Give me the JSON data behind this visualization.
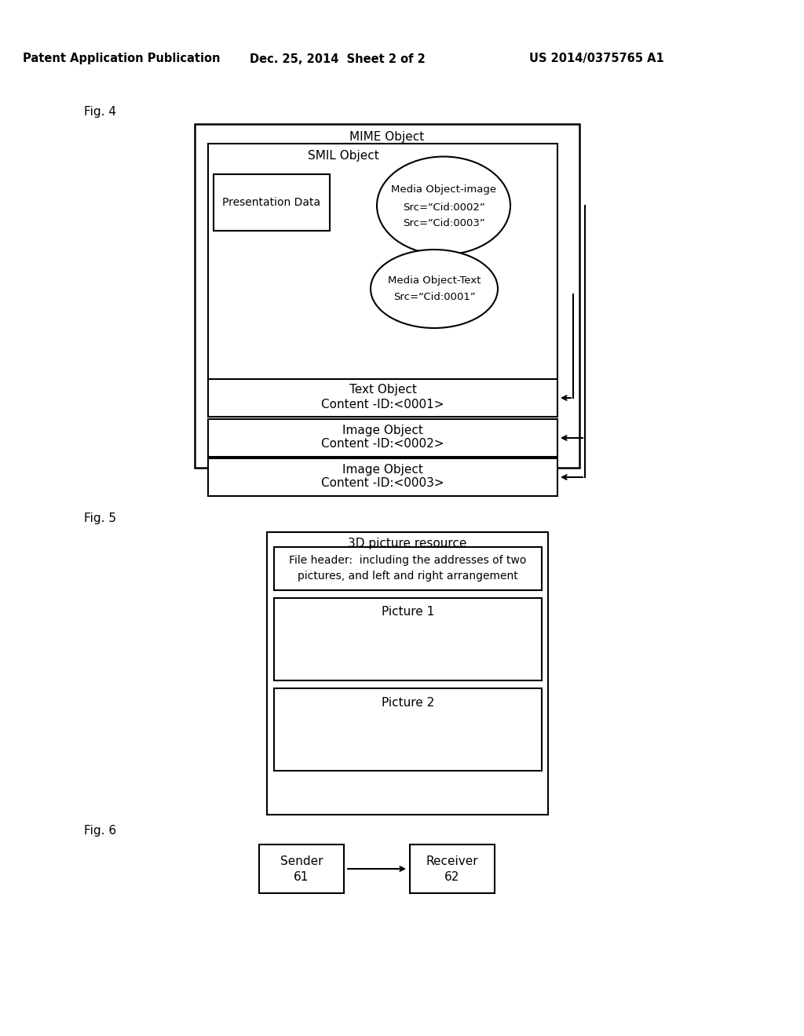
{
  "bg_color": "#ffffff",
  "header_text": "Patent Application Publication",
  "header_date": "Dec. 25, 2014  Sheet 2 of 2",
  "header_patent": "US 2014/0375765 A1",
  "fig4_label": "Fig. 4",
  "fig5_label": "Fig. 5",
  "fig6_label": "Fig. 6",
  "fig4": {
    "mime_label": "MIME Object",
    "smil_label": "SMIL Object",
    "ellipse1_label1": "Media Object-image",
    "ellipse1_label2": "Src=“Cid:0002”",
    "ellipse1_label3": "Src=“Cid:0003”",
    "ellipse2_label1": "Media Object-Text",
    "ellipse2_label2": "Src=“Cid:0001”",
    "pres_data_label": "Presentation Data",
    "text_obj_label1": "Text Object",
    "text_obj_label2": "Content -ID:<0001>",
    "img_obj1_label1": "Image Object",
    "img_obj1_label2": "Content -ID:<0002>",
    "img_obj2_label1": "Image Object",
    "img_obj2_label2": "Content -ID:<0003>"
  },
  "fig5": {
    "outer_label": "3D picture resource",
    "file_header_line1": "File header:  including the addresses of two",
    "file_header_line2": "pictures, and left and right arrangement",
    "pic1_label": "Picture 1",
    "pic2_label": "Picture 2"
  },
  "fig6": {
    "sender_label1": "Sender",
    "sender_label2": "61",
    "receiver_label1": "Receiver",
    "receiver_label2": "62"
  }
}
